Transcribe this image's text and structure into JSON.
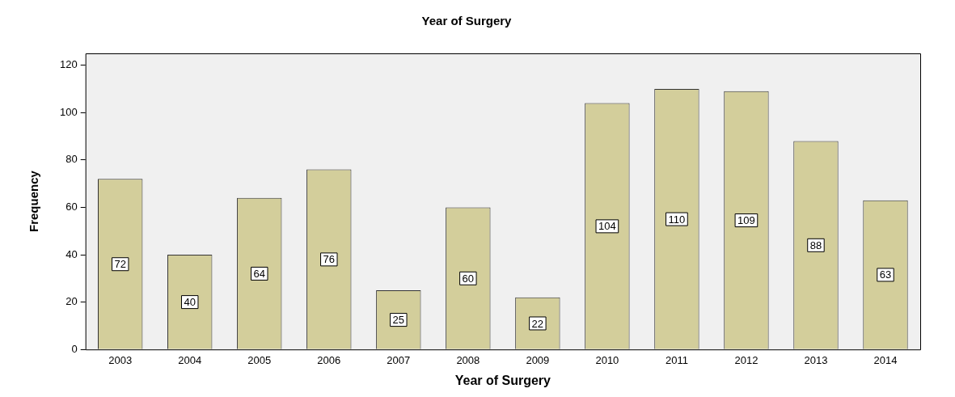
{
  "chart_data": {
    "type": "bar",
    "title": "Year of Surgery",
    "xlabel": "Year of Surgery",
    "ylabel": "Frequency",
    "categories": [
      "2003",
      "2004",
      "2005",
      "2006",
      "2007",
      "2008",
      "2009",
      "2010",
      "2011",
      "2012",
      "2013",
      "2014"
    ],
    "values": [
      72,
      40,
      64,
      76,
      25,
      60,
      22,
      104,
      110,
      109,
      88,
      63
    ],
    "color": "#d3ce9b",
    "ylim": [
      0,
      125
    ],
    "yticks": [
      0,
      20,
      40,
      60,
      80,
      100,
      120
    ],
    "grid": false,
    "legend": false,
    "data_labels": true
  }
}
